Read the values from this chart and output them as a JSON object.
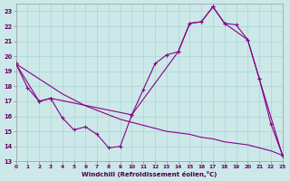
{
  "xlabel": "Windchill (Refroidissement éolien,°C)",
  "background_color": "#cce8e8",
  "grid_color": "#aad4d4",
  "line_color": "#880088",
  "xlim": [
    0,
    23
  ],
  "ylim": [
    13,
    23.5
  ],
  "ytick_vals": [
    13,
    14,
    15,
    16,
    17,
    18,
    19,
    20,
    21,
    22,
    23
  ],
  "xtick_vals": [
    0,
    1,
    2,
    3,
    4,
    5,
    6,
    7,
    8,
    9,
    10,
    11,
    12,
    13,
    14,
    15,
    16,
    17,
    18,
    19,
    20,
    21,
    22,
    23
  ],
  "line1_x": [
    0,
    1,
    2,
    3,
    4,
    5,
    6,
    7,
    8,
    9,
    10,
    11,
    12,
    13,
    14,
    15,
    16,
    17,
    18,
    19,
    20,
    21,
    22,
    23
  ],
  "line1_y": [
    19.5,
    17.9,
    17.0,
    17.2,
    15.9,
    15.1,
    15.3,
    14.8,
    13.9,
    14.0,
    16.1,
    17.8,
    19.5,
    20.1,
    20.3,
    22.2,
    22.3,
    23.3,
    22.2,
    22.1,
    21.1,
    18.5,
    15.5,
    13.4
  ],
  "line2_x": [
    0,
    2,
    3,
    10,
    14,
    15,
    16,
    17,
    18,
    20,
    21,
    23
  ],
  "line2_y": [
    19.5,
    17.0,
    17.2,
    16.1,
    20.3,
    22.2,
    22.3,
    23.3,
    22.2,
    21.1,
    18.5,
    13.4
  ],
  "line3_x": [
    0,
    1,
    2,
    3,
    4,
    5,
    6,
    7,
    8,
    9,
    10,
    11,
    12,
    13,
    14,
    15,
    16,
    17,
    18,
    19,
    20,
    21,
    22,
    23
  ],
  "line3_y": [
    19.5,
    19.0,
    18.5,
    18.0,
    17.5,
    17.1,
    16.7,
    16.4,
    16.1,
    15.8,
    15.6,
    15.4,
    15.2,
    15.0,
    14.9,
    14.8,
    14.6,
    14.5,
    14.3,
    14.2,
    14.1,
    13.9,
    13.7,
    13.4
  ]
}
